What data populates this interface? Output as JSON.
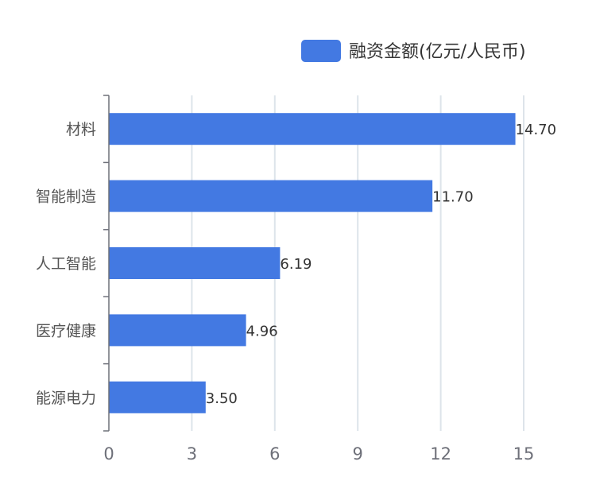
{
  "chart_data": {
    "type": "bar",
    "orientation": "horizontal",
    "categories": [
      "材料",
      "智能制造",
      "人工智能",
      "医疗健康",
      "能源电力"
    ],
    "series": [
      {
        "name": "融资金额(亿元/人民币)",
        "values": [
          14.7,
          11.7,
          6.19,
          4.96,
          3.5
        ],
        "value_labels": [
          "14.70",
          "11.70",
          "6.19",
          "4.96",
          "3.50"
        ],
        "color": "#4379e2"
      }
    ],
    "x_ticks": [
      "0",
      "3",
      "6",
      "9",
      "12",
      "15"
    ],
    "xlim": [
      0,
      15
    ],
    "grid": true,
    "legend_position": "top-right"
  }
}
